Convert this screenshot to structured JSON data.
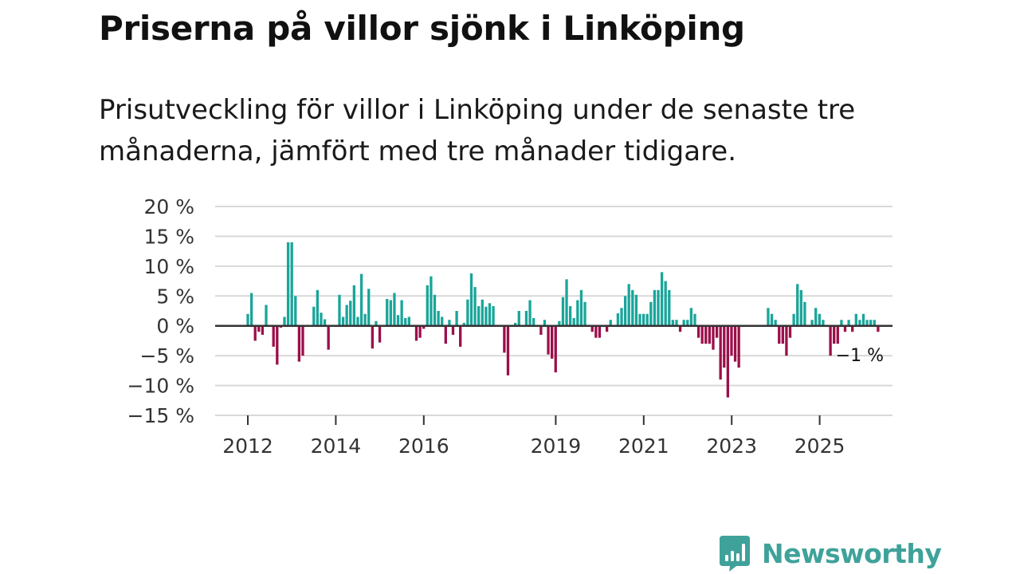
{
  "header": {
    "title": "Priserna på villor sjönk i Linköping",
    "subtitle": "Prisutveckling för villor i Linköping under de senaste tre månaderna, jämfört med tre månader tidigare."
  },
  "brand": {
    "name": "Newsworthy",
    "icon": "newsworthy-bar-chart-icon"
  },
  "colors": {
    "positive": "#1aa59a",
    "negative": "#9b0f4a",
    "grid": "#d9d9d9",
    "zero_line": "#333333",
    "brand": "#3fa29a"
  },
  "chart_data": {
    "type": "bar",
    "title": "Priserna på villor sjönk i Linköping",
    "xlabel": "",
    "ylabel": "",
    "ylim": [
      -15,
      20
    ],
    "yticks": [
      20,
      15,
      10,
      5,
      0,
      -5,
      -10,
      -15
    ],
    "ytick_labels": [
      "20 %",
      "15 %",
      "10 %",
      "5 %",
      "0 %",
      "−5 %",
      "−10 %",
      "−15 %"
    ],
    "xticks": [
      2012,
      2014,
      2016,
      2019,
      2021,
      2023,
      2025
    ],
    "xtick_labels": [
      "2012",
      "2014",
      "2016",
      "2019",
      "2021",
      "2023",
      "2025"
    ],
    "x_start": 2012.0,
    "x_step": 0.0833,
    "grid": true,
    "annotation": {
      "label": "−1 %",
      "value": -1
    },
    "values": [
      2,
      5.5,
      -2.5,
      -1,
      -1.5,
      3.5,
      0,
      -3.5,
      -6.5,
      -0.3,
      1.5,
      14,
      14,
      5,
      -6,
      -5,
      0,
      0,
      3.2,
      6,
      2.2,
      1.1,
      -4,
      0,
      0,
      5.2,
      1.5,
      3.5,
      4.2,
      6.8,
      1.5,
      8.7,
      2,
      6.2,
      -3.8,
      0.8,
      -2.8,
      0,
      4.5,
      4.3,
      5.5,
      1.8,
      4.3,
      1.3,
      1.5,
      0,
      -2.5,
      -2,
      -0.5,
      6.8,
      8.3,
      5.2,
      2.5,
      1.5,
      -3,
      1,
      -1.5,
      2.5,
      -3.5,
      0.5,
      4.4,
      8.8,
      6.5,
      3.3,
      4.4,
      3.2,
      3.8,
      3.3,
      0,
      0,
      -4.5,
      -8.3,
      0,
      0.5,
      2.5,
      0,
      2.5,
      4.3,
      1.3,
      0,
      -1.5,
      1,
      -4.8,
      -5.5,
      -7.8,
      0.8,
      4.8,
      7.8,
      3.3,
      1.3,
      4.3,
      6,
      4,
      0,
      -1,
      -2,
      -2,
      0,
      -1,
      1,
      0,
      2.1,
      3,
      5,
      7,
      6,
      5.2,
      2,
      2,
      2,
      4,
      6,
      6,
      9,
      7.5,
      6,
      1,
      1,
      -1,
      1,
      1,
      3,
      2,
      -2,
      -3,
      -3,
      -3,
      -4,
      -2,
      -9,
      -7,
      -12,
      -5,
      -6,
      -7,
      0,
      0,
      0,
      0,
      0,
      0,
      0,
      3,
      2,
      1,
      -3,
      -3,
      -5,
      -2,
      2,
      7,
      6,
      4,
      0,
      1,
      3,
      2,
      1,
      0,
      -5,
      -3,
      -3,
      1,
      -1,
      1,
      -1,
      2,
      1,
      2,
      1,
      1,
      1,
      -1
    ]
  }
}
